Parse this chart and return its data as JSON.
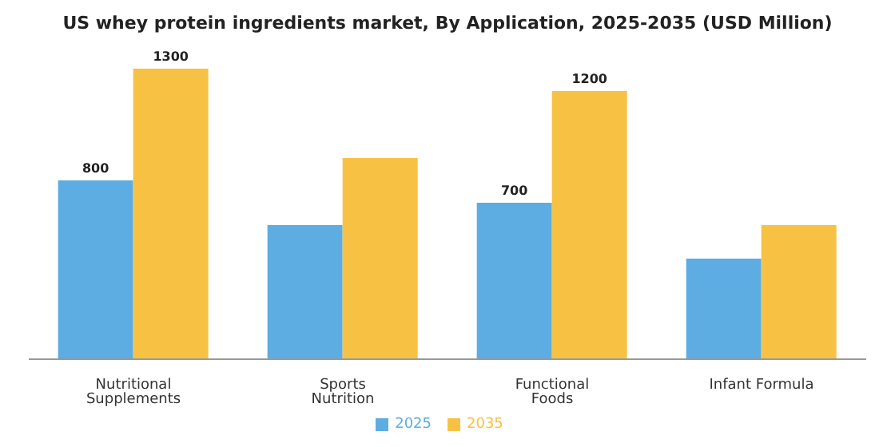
{
  "chart_data": {
    "type": "bar",
    "title": "US whey protein ingredients market, By Application, 2025-2035 (USD Million)",
    "categories": [
      "Nutritional Supplements",
      "Sports Nutrition",
      "Functional Foods",
      "Infant Formula"
    ],
    "series": [
      {
        "name": "2025",
        "color": "#5dade2",
        "values": [
          800,
          600,
          700,
          450
        ],
        "value_labels": [
          "800",
          null,
          "700",
          null
        ]
      },
      {
        "name": "2035",
        "color": "#f7c244",
        "values": [
          1300,
          900,
          1200,
          600
        ],
        "value_labels": [
          "1300",
          null,
          "1200",
          null
        ]
      }
    ],
    "grid": false,
    "legend": "bottom"
  }
}
